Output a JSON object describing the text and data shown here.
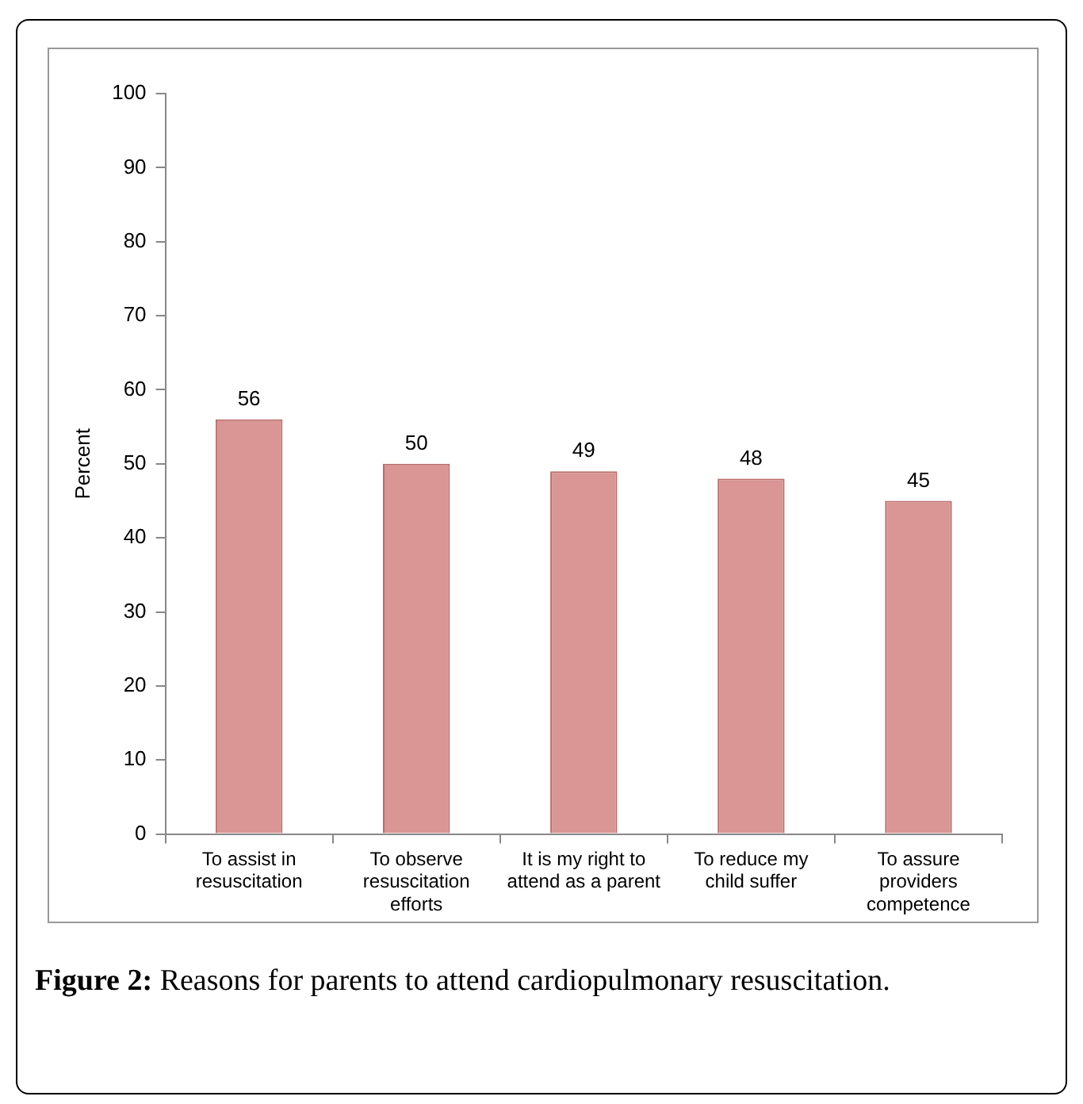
{
  "chart_data": {
    "type": "bar",
    "ylabel": "Percent",
    "categories": [
      "To assist in resuscitation",
      "To observe resuscitation efforts",
      "It is my right to attend as a parent",
      "To reduce my child suffer",
      "To assure providers competence"
    ],
    "values": [
      56,
      50,
      49,
      48,
      45
    ],
    "color": "#d99694",
    "ylim": [
      0,
      100
    ],
    "yticks": [
      0,
      10,
      20,
      30,
      40,
      50,
      60,
      70,
      80,
      90,
      100
    ],
    "grid": false,
    "legend": false,
    "data_labels": true,
    "annotations": [
      "Figure 2:",
      "Reasons for parents to attend cardiopulmonary resuscitation."
    ]
  }
}
